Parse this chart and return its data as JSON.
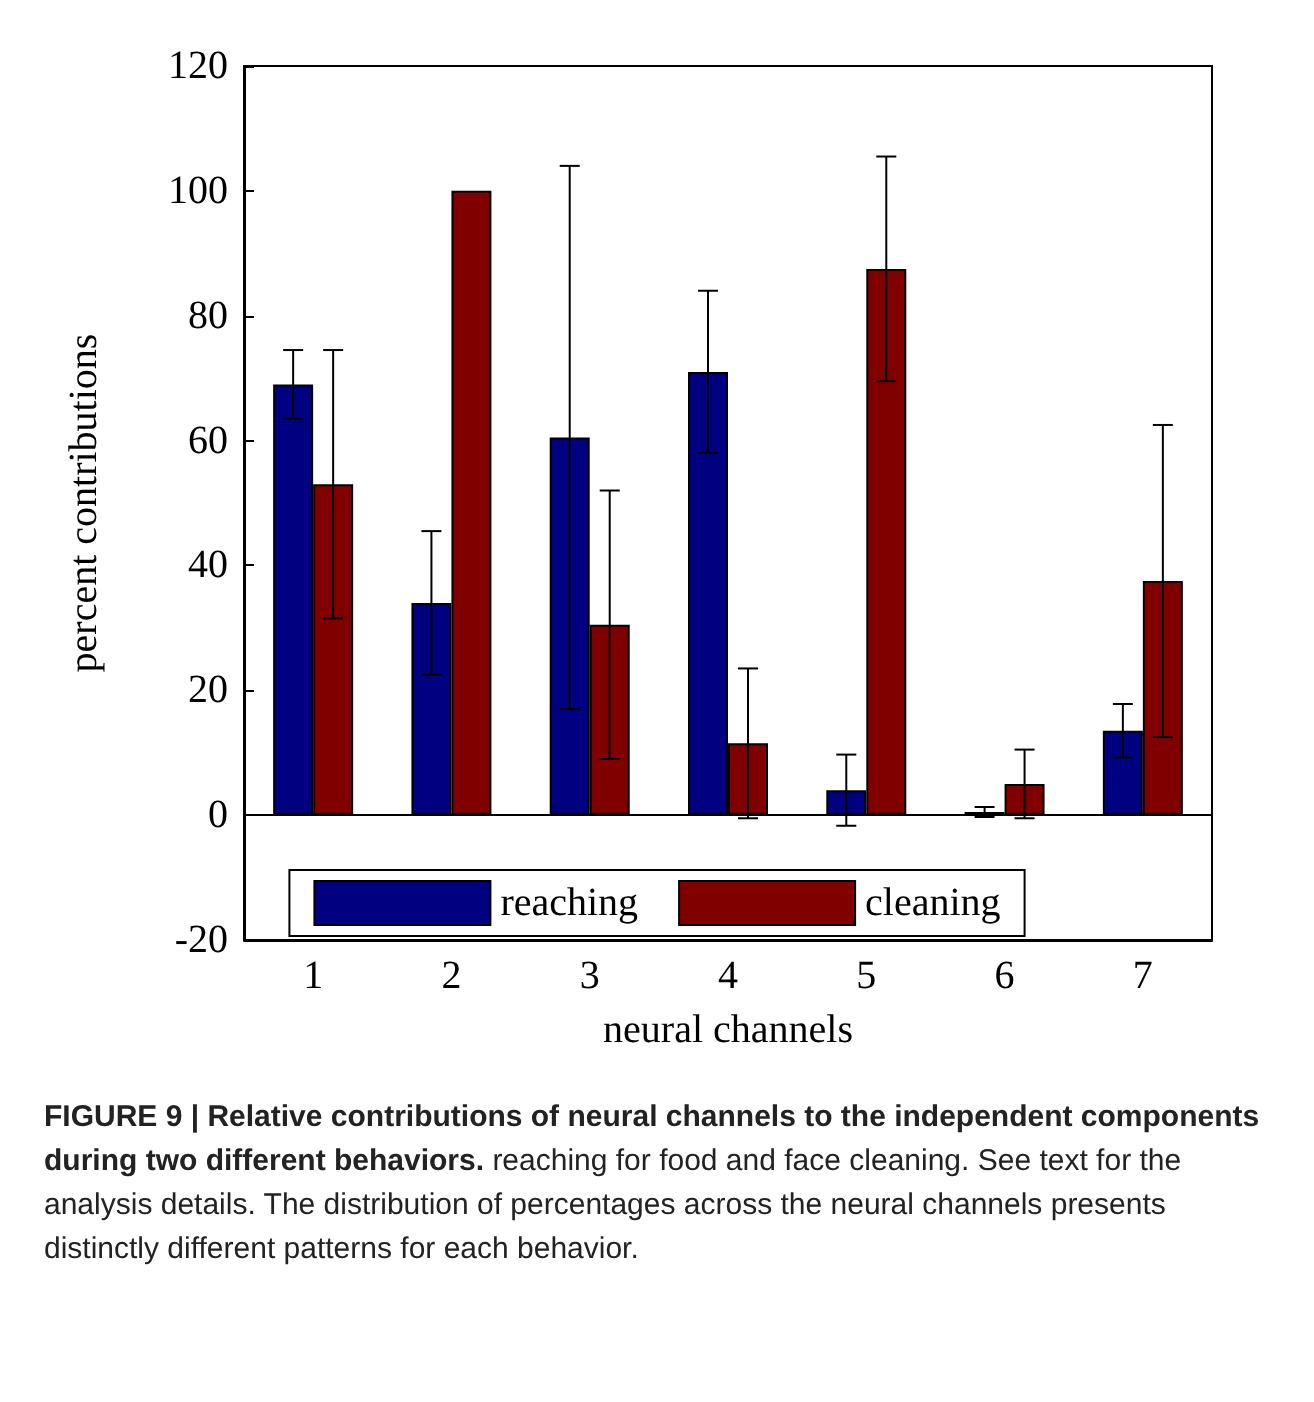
{
  "chart_data": {
    "type": "bar",
    "xlabel": "neural channels",
    "ylabel": "percent contributions",
    "categories": [
      "1",
      "2",
      "3",
      "4",
      "5",
      "6",
      "7"
    ],
    "series": [
      {
        "name": "reaching",
        "color": "#000080",
        "values": [
          69,
          34,
          60.5,
          71,
          4,
          0.5,
          13.5
        ],
        "errors": [
          5.5,
          11.5,
          43.5,
          13,
          5.7,
          0.8,
          4.3
        ]
      },
      {
        "name": "cleaning",
        "color": "#800000",
        "values": [
          53,
          100,
          30.5,
          11.5,
          87.5,
          5,
          37.5
        ],
        "errors": [
          21.5,
          null,
          21.5,
          12,
          18,
          5.5,
          25
        ]
      }
    ],
    "ylim": [
      -20,
      120
    ],
    "yticks": [
      -20,
      0,
      20,
      40,
      60,
      80,
      100,
      120
    ],
    "ref_lines": [
      {
        "axis": "y",
        "value": 0,
        "color": "#000000"
      }
    ],
    "legend": "bottom",
    "grid": false,
    "annotations": [
      "FIGURE 9 | Relative contributions of neural channels to the independent components during two different behaviors.",
      "reaching for food and face cleaning. See text for the analysis details. The distribution of percentages across the neural channels presents distinctly different patterns for each behavior."
    ]
  }
}
